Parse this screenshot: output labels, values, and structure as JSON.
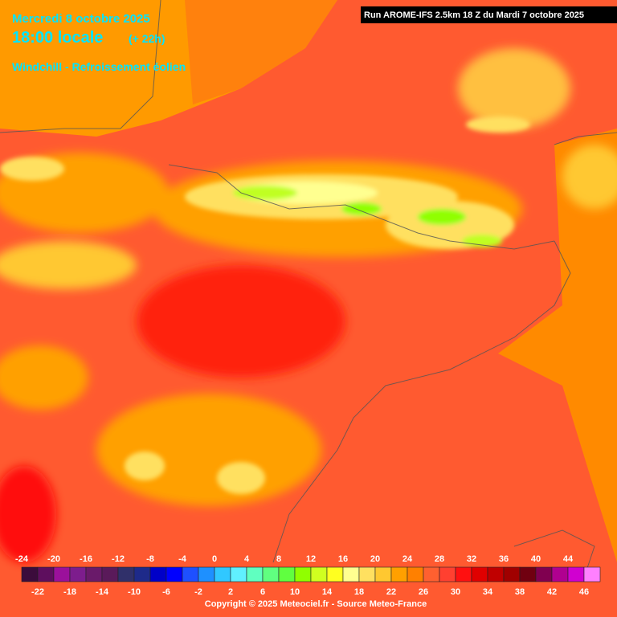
{
  "header": {
    "date": "Mercredi 8 octobre 2025",
    "time": "18:00 locale",
    "lead": "(+ 22h)",
    "parameter": "Windchill - Refroissement éolien"
  },
  "run": "Run AROME-IFS 2.5km 18 Z du Mardi 7 octobre 2025",
  "legend": {
    "values": [
      -24,
      -22,
      -20,
      -18,
      -16,
      -14,
      -12,
      -10,
      -8,
      -6,
      -4,
      -2,
      0,
      2,
      4,
      6,
      8,
      10,
      12,
      14,
      16,
      18,
      20,
      22,
      24,
      26,
      28,
      30,
      32,
      34,
      36,
      38,
      40,
      42,
      44,
      46
    ],
    "colors": [
      "#3c0c3c",
      "#5e0e5e",
      "#9b109b",
      "#7d1d8d",
      "#6a1a6a",
      "#5a1a5a",
      "#30306a",
      "#1e2a8a",
      "#0000c8",
      "#0000ff",
      "#1e50ff",
      "#1e90ff",
      "#30c8ff",
      "#60f0ff",
      "#60ffc0",
      "#60ff80",
      "#60ff40",
      "#90ff00",
      "#d0ff20",
      "#ffff20",
      "#ffff90",
      "#ffe060",
      "#ffc830",
      "#ffa000",
      "#ff8000",
      "#ff6030",
      "#ff4030",
      "#ff1010",
      "#e00000",
      "#c00000",
      "#a00000",
      "#700010",
      "#800050",
      "#b00090",
      "#d000d0",
      "#ff80ff"
    ]
  },
  "copyright": "Copyright © 2025 Meteociel.fr - Source Meteo-France"
}
